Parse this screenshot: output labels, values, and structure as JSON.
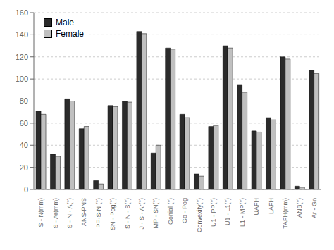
{
  "chart_data": {
    "type": "bar",
    "categories": [
      "S - N(mm)",
      "S - Ar(mm)",
      "S - N - A(°)",
      "ANS-PNS",
      "PP-S-N (°)",
      "SN - Pog(°)",
      "S - N - B(°)",
      "J - S - Ar(°)",
      "MP - SN(°)",
      "Gonial (°)",
      "Go - Pog",
      "Convexity(°)",
      "U1 - PP(°)",
      "U1 - L1(°)",
      "L1 - MP(°)",
      "UAFH",
      "LAFH",
      "TAFH(mm)",
      "ANB(°)",
      "Ar - Gn"
    ],
    "series": [
      {
        "name": "Male",
        "color": "#2b2b2b",
        "values": [
          71,
          32,
          82,
          55,
          8,
          76,
          80,
          143,
          33,
          128,
          68,
          14,
          57,
          130,
          95,
          53,
          65,
          120,
          3,
          108
        ]
      },
      {
        "name": "Female",
        "color": "#c0c0c0",
        "values": [
          68,
          30,
          80,
          57,
          5,
          75,
          79,
          141,
          40,
          127,
          65,
          12,
          58,
          128,
          88,
          52,
          63,
          118,
          2,
          105
        ]
      }
    ],
    "ylim": [
      0,
      160
    ],
    "yticks": [
      0,
      20,
      40,
      60,
      80,
      100,
      120,
      140,
      160
    ],
    "grid": true,
    "legend": "upper left"
  }
}
